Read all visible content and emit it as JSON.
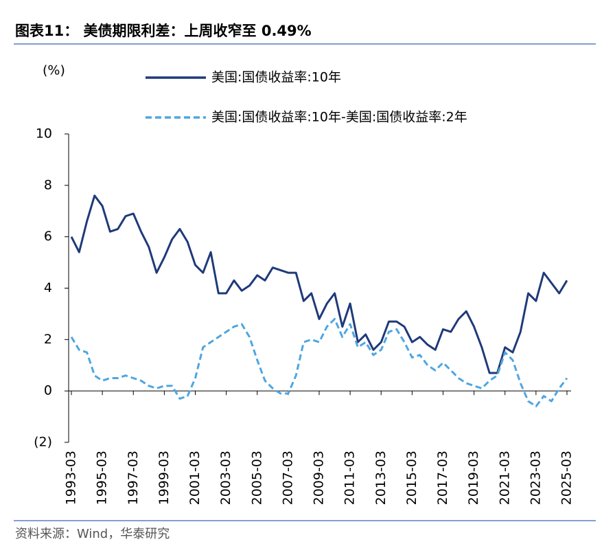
{
  "chart_data": {
    "type": "line",
    "title": "图表11： 美债期限利差：上周收窄至 0.49%",
    "y_unit": "(%)",
    "source": "资料来源：Wind，华泰研究",
    "categories": [
      "1993-03",
      null,
      null,
      null,
      "1995-03",
      null,
      null,
      null,
      "1997-03",
      null,
      null,
      null,
      "1999-03",
      null,
      null,
      null,
      "2001-03",
      null,
      null,
      null,
      "2003-03",
      null,
      null,
      null,
      "2005-03",
      null,
      null,
      null,
      "2007-03",
      null,
      null,
      null,
      "2009-03",
      null,
      null,
      null,
      "2011-03",
      null,
      null,
      null,
      "2013-03",
      null,
      null,
      null,
      "2015-03",
      null,
      null,
      null,
      "2017-03",
      null,
      null,
      null,
      "2019-03",
      null,
      null,
      null,
      "2021-03",
      null,
      null,
      null,
      "2023-03",
      null,
      null,
      null,
      "2025-03"
    ],
    "series": [
      {
        "name": "美国:国债收益率:10年",
        "color": "#1f3a7a",
        "line_style": "solid",
        "values": [
          6.0,
          5.4,
          6.6,
          7.6,
          7.2,
          6.2,
          6.3,
          6.8,
          6.9,
          6.2,
          5.6,
          4.6,
          5.2,
          5.9,
          6.3,
          5.8,
          4.9,
          4.6,
          5.4,
          3.8,
          3.8,
          4.3,
          3.9,
          4.1,
          4.5,
          4.3,
          4.8,
          4.7,
          4.6,
          4.6,
          3.5,
          3.8,
          2.8,
          3.4,
          3.8,
          2.5,
          3.4,
          1.9,
          2.2,
          1.6,
          1.9,
          2.7,
          2.7,
          2.5,
          1.9,
          2.1,
          1.8,
          1.6,
          2.4,
          2.3,
          2.8,
          3.1,
          2.5,
          1.7,
          0.7,
          0.7,
          1.7,
          1.5,
          2.3,
          3.8,
          3.5,
          4.6,
          4.2,
          3.8,
          4.3
        ]
      },
      {
        "name": "美国:国债收益率:10年-美国:国债收益率:2年",
        "color": "#4ea6e0",
        "line_style": "dashed",
        "values": [
          2.1,
          1.6,
          1.5,
          0.6,
          0.4,
          0.5,
          0.5,
          0.6,
          0.5,
          0.4,
          0.2,
          0.1,
          0.2,
          0.2,
          -0.3,
          -0.2,
          0.5,
          1.7,
          1.9,
          2.1,
          2.3,
          2.5,
          2.6,
          2.1,
          1.2,
          0.4,
          0.1,
          -0.1,
          -0.1,
          0.6,
          1.9,
          2.0,
          1.9,
          2.5,
          2.8,
          2.1,
          2.6,
          1.7,
          1.9,
          1.4,
          1.6,
          2.3,
          2.4,
          1.9,
          1.3,
          1.4,
          1.0,
          0.8,
          1.1,
          0.8,
          0.5,
          0.3,
          0.2,
          0.1,
          0.4,
          0.6,
          1.5,
          1.2,
          0.3,
          -0.4,
          -0.6,
          -0.2,
          -0.4,
          0.1,
          0.5
        ]
      }
    ],
    "ylim": [
      -2,
      10
    ],
    "yticks": [
      {
        "value": -2,
        "label": "(2)"
      },
      0,
      2,
      4,
      6,
      8,
      10
    ]
  }
}
